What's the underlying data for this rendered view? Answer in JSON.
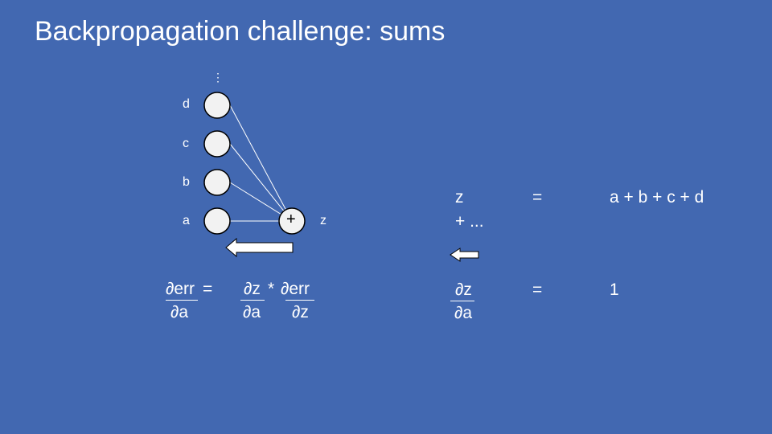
{
  "title": "Backpropagation challenge: sums",
  "diagram": {
    "ellipsis": "⋮",
    "inputs": [
      "d",
      "c",
      "b",
      "a"
    ],
    "sum_symbol": "+",
    "output_label": "z"
  },
  "left_equation": {
    "lhs_num": "∂err",
    "lhs_den": "∂a",
    "equals": "=",
    "term1_num": "∂z",
    "term1_den": "∂a",
    "times": "*",
    "term2_num": "∂err",
    "term2_den": "∂z"
  },
  "right_equations": {
    "z_lhs": "z",
    "z_equals": "=",
    "z_rhs": "a + b + c + d",
    "z_rhs_cont": "+ ...",
    "deriv_num": "∂z",
    "deriv_den": "∂a",
    "deriv_equals": "=",
    "deriv_value": "1"
  },
  "colors": {
    "background": "#4268B1",
    "node_fill": "#F2F2F2",
    "node_stroke": "#000000",
    "text": "#FFFFFF"
  }
}
